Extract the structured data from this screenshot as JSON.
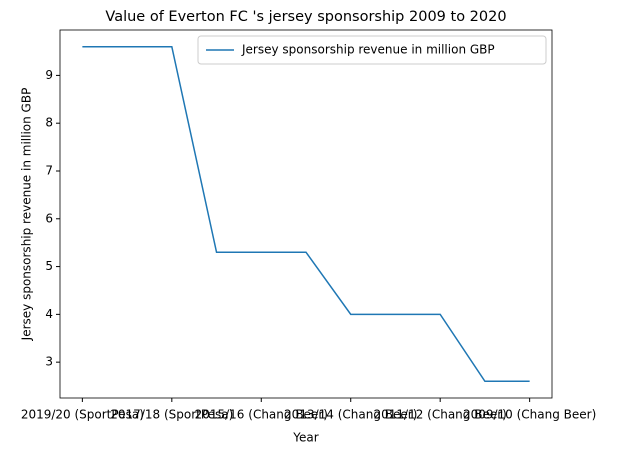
{
  "chart_data": {
    "type": "line",
    "title": "Value of Everton FC 's jersey sponsorship 2009 to 2020",
    "x_label": "Year",
    "y_label": "Jersey sponsorship revenue in million GBP",
    "categories": [
      "2019/20 (SportPesa)",
      null,
      "2017/18 (SportPesa)",
      null,
      "2015/16 (Chang Beer)",
      null,
      "2013/14 (Chang Beer)",
      null,
      "2011/12 (Chang Beer)",
      null,
      "2009/10 (Chang Beer)"
    ],
    "series": [
      {
        "name": "Jersey sponsorship revenue in million GBP",
        "color": "#1f77b4",
        "values": [
          9.6,
          9.6,
          9.6,
          5.3,
          5.3,
          5.3,
          4.0,
          4.0,
          4.0,
          2.6,
          2.6
        ]
      }
    ],
    "ylim": [
      2.25,
      9.95
    ],
    "yticks": [
      3,
      4,
      5,
      6,
      7,
      8,
      9
    ],
    "legend": "upper right"
  }
}
